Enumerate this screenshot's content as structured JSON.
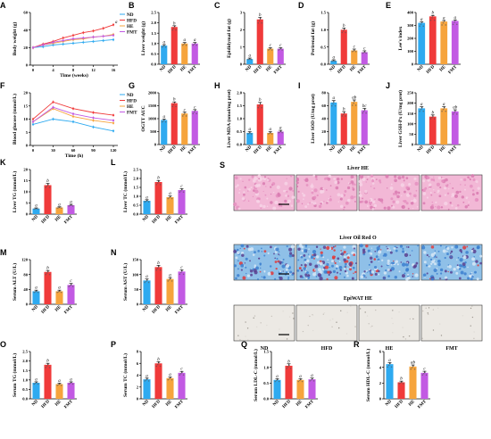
{
  "colors": {
    "ND": "#2eaaf0",
    "HFD": "#f03a3a",
    "HE": "#f6a43c",
    "FMT": "#c25ae3"
  },
  "groups": [
    "ND",
    "HFD",
    "HE",
    "FMT"
  ],
  "chart_data": [
    {
      "id": "A",
      "type": "line",
      "ylabel": "Body weight (g)",
      "xlabel": "Time (weeks)",
      "x": [
        0,
        2,
        4,
        6,
        8,
        10,
        12,
        14,
        16
      ],
      "xticks": [
        "0",
        "4",
        "8",
        "12",
        "16"
      ],
      "xtick_vals": [
        0,
        4,
        8,
        12,
        16
      ],
      "ylim": [
        0,
        60
      ],
      "yticks": [
        "0",
        "20",
        "40",
        "60"
      ],
      "series": [
        {
          "name": "ND",
          "values": [
            20,
            21,
            23,
            24,
            25,
            26,
            27,
            28,
            29
          ]
        },
        {
          "name": "HFD",
          "values": [
            20,
            24,
            27,
            31,
            34,
            37,
            39,
            42,
            46
          ]
        },
        {
          "name": "HE",
          "values": [
            20,
            23,
            25,
            27,
            29,
            30,
            32,
            33,
            35
          ]
        },
        {
          "name": "FMT",
          "values": [
            20,
            23,
            26,
            28,
            30,
            31,
            32,
            33,
            34
          ]
        }
      ],
      "annot": "a"
    },
    {
      "id": "B",
      "type": "bar",
      "ylabel": "Liver weight (g)",
      "ylim": [
        0,
        2.5
      ],
      "yticks": [
        "0.0",
        "0.5",
        "1.0",
        "1.5",
        "2.0",
        "2.5"
      ],
      "values": [
        0.9,
        1.8,
        1.0,
        1.0
      ],
      "errors": [
        0.05,
        0.06,
        0.05,
        0.05
      ],
      "letters": [
        "a",
        "b",
        "a",
        "a"
      ]
    },
    {
      "id": "C",
      "type": "bar",
      "ylabel": "Epididymal fat (g)",
      "ylim": [
        0,
        3
      ],
      "yticks": [
        "0",
        "1",
        "2",
        "3"
      ],
      "values": [
        0.3,
        2.6,
        0.9,
        0.9
      ],
      "errors": [
        0.06,
        0.12,
        0.06,
        0.06
      ],
      "letters": [
        "a",
        "b",
        "c",
        "c"
      ]
    },
    {
      "id": "D",
      "type": "bar",
      "ylabel": "Perirenal fat (g)",
      "ylim": [
        0,
        1.5
      ],
      "yticks": [
        "0.0",
        "0.5",
        "1.0",
        "1.5"
      ],
      "values": [
        0.1,
        1.0,
        0.4,
        0.35
      ],
      "errors": [
        0.03,
        0.05,
        0.04,
        0.04
      ],
      "letters": [
        "a",
        "b",
        "c",
        "c"
      ]
    },
    {
      "id": "E",
      "type": "bar",
      "ylabel": "Lee's index",
      "ylim": [
        0,
        400
      ],
      "yticks": [
        "0",
        "100",
        "200",
        "300",
        "400"
      ],
      "values": [
        320,
        370,
        330,
        335
      ],
      "errors": [
        8,
        8,
        8,
        8
      ],
      "letters": [
        "a",
        "b",
        "a",
        "a"
      ]
    },
    {
      "id": "F",
      "type": "line",
      "ylabel": "Blood glucose (mmol/L)",
      "xlabel": "Time (h)",
      "x": [
        0,
        30,
        60,
        90,
        120
      ],
      "xticks": [
        "0",
        "30",
        "60",
        "90",
        "120"
      ],
      "xtick_vals": [
        0,
        30,
        60,
        90,
        120
      ],
      "ylim": [
        0,
        20
      ],
      "yticks": [
        "0",
        "5",
        "10",
        "15",
        "20"
      ],
      "series": [
        {
          "name": "ND",
          "values": [
            8,
            10,
            9,
            7,
            5.5
          ]
        },
        {
          "name": "HFD",
          "values": [
            10,
            16.5,
            14,
            12.5,
            11.5
          ]
        },
        {
          "name": "HE",
          "values": [
            9,
            14,
            11,
            9.5,
            8.5
          ]
        },
        {
          "name": "FMT",
          "values": [
            9,
            14.5,
            12,
            10.5,
            9.5
          ]
        }
      ],
      "annot": ""
    },
    {
      "id": "G",
      "type": "bar",
      "ylabel": "OGTT AUC",
      "ylim": [
        0,
        2000
      ],
      "yticks": [
        "0",
        "500",
        "1000",
        "1500",
        "2000"
      ],
      "values": [
        950,
        1600,
        1200,
        1300
      ],
      "errors": [
        40,
        50,
        50,
        50
      ],
      "letters": [
        "a",
        "b",
        "c",
        "c"
      ]
    },
    {
      "id": "H",
      "type": "bar",
      "ylabel": "Liver MDA (nmol/mg prot)",
      "ylim": [
        0,
        2
      ],
      "yticks": [
        "0.0",
        "0.5",
        "1.0",
        "1.5",
        "2.0"
      ],
      "values": [
        0.45,
        1.55,
        0.45,
        0.5
      ],
      "errors": [
        0.05,
        0.08,
        0.05,
        0.05
      ],
      "letters": [
        "a",
        "b",
        "a",
        "a"
      ]
    },
    {
      "id": "I",
      "type": "bar",
      "ylabel": "Liver SOD (U/mg prot)",
      "ylim": [
        0,
        80
      ],
      "yticks": [
        "0",
        "20",
        "40",
        "60",
        "80"
      ],
      "values": [
        65,
        48,
        66,
        53
      ],
      "errors": [
        3,
        3,
        3,
        3
      ],
      "letters": [
        "a",
        "b",
        "ab",
        "bc"
      ]
    },
    {
      "id": "J",
      "type": "bar",
      "ylabel": "Liver GSH-Px (U/mg prot)",
      "ylim": [
        0,
        250
      ],
      "yticks": [
        "0",
        "50",
        "100",
        "150",
        "200",
        "250"
      ],
      "values": [
        175,
        135,
        175,
        160
      ],
      "errors": [
        8,
        8,
        8,
        8
      ],
      "letters": [
        "a",
        "b",
        "a",
        "ab"
      ]
    },
    {
      "id": "K",
      "type": "bar",
      "ylabel": "Liver TG (mmol/L)",
      "ylim": [
        0,
        20
      ],
      "yticks": [
        "0",
        "5",
        "10",
        "15",
        "20"
      ],
      "values": [
        2.5,
        13,
        3,
        4
      ],
      "errors": [
        0.3,
        0.8,
        0.3,
        0.4
      ],
      "letters": [
        "a",
        "b",
        "a",
        "a"
      ]
    },
    {
      "id": "L",
      "type": "bar",
      "ylabel": "Liver TC (mmol/L)",
      "ylim": [
        0,
        2.5
      ],
      "yticks": [
        "0.0",
        "0.5",
        "1.0",
        "1.5",
        "2.0",
        "2.5"
      ],
      "values": [
        0.75,
        1.8,
        0.95,
        1.35
      ],
      "errors": [
        0.06,
        0.09,
        0.07,
        0.08
      ],
      "letters": [
        "a",
        "b",
        "a",
        "c"
      ]
    },
    {
      "id": "M",
      "type": "bar",
      "ylabel": "Serum ALT (U/L)",
      "ylim": [
        0,
        120
      ],
      "yticks": [
        "0",
        "40",
        "80",
        "120"
      ],
      "values": [
        35,
        87,
        35,
        52
      ],
      "errors": [
        3,
        4,
        3,
        4
      ],
      "letters": [
        "a",
        "b",
        "a",
        "c"
      ]
    },
    {
      "id": "N",
      "type": "bar",
      "ylabel": "Serum AST (U/L)",
      "ylim": [
        0,
        150
      ],
      "yticks": [
        "0",
        "50",
        "100",
        "150"
      ],
      "values": [
        80,
        125,
        85,
        110
      ],
      "errors": [
        5,
        6,
        5,
        6
      ],
      "letters": [
        "a",
        "b",
        "a",
        "c"
      ]
    },
    {
      "id": "O",
      "type": "bar",
      "ylabel": "Serum TG (mmol/L)",
      "ylim": [
        0,
        2.5
      ],
      "yticks": [
        "0.0",
        "0.5",
        "1.0",
        "1.5",
        "2.0",
        "2.5"
      ],
      "values": [
        0.85,
        1.8,
        0.78,
        0.85
      ],
      "errors": [
        0.05,
        0.08,
        0.05,
        0.05
      ],
      "letters": [
        "a",
        "b",
        "a",
        "a"
      ]
    },
    {
      "id": "P",
      "type": "bar",
      "ylabel": "Serum TC (mmol/L)",
      "ylim": [
        0,
        8
      ],
      "yticks": [
        "0",
        "2",
        "4",
        "6",
        "8"
      ],
      "values": [
        3.3,
        6.0,
        3.5,
        4.4
      ],
      "errors": [
        0.2,
        0.3,
        0.2,
        0.25
      ],
      "letters": [
        "a",
        "b",
        "a",
        "c"
      ]
    },
    {
      "id": "Q",
      "type": "bar",
      "ylabel": "Serum LDL-C (mmol/L)",
      "ylim": [
        0,
        1.5
      ],
      "yticks": [
        "0.0",
        "0.5",
        "1.0",
        "1.5"
      ],
      "values": [
        0.6,
        1.05,
        0.6,
        0.62
      ],
      "errors": [
        0.04,
        0.06,
        0.04,
        0.04
      ],
      "letters": [
        "a",
        "b",
        "a",
        "a"
      ]
    },
    {
      "id": "R",
      "type": "bar",
      "ylabel": "Serum HDL-C (mmol/L)",
      "ylim": [
        0,
        6
      ],
      "yticks": [
        "0",
        "2",
        "4",
        "6"
      ],
      "values": [
        4.4,
        2.1,
        4.1,
        3.3
      ],
      "errors": [
        0.2,
        0.15,
        0.2,
        0.2
      ],
      "letters": [
        "a",
        "b",
        "ab",
        "c"
      ]
    }
  ],
  "histology": {
    "id": "S",
    "rows": [
      {
        "title": "Liver HE",
        "tone": "he"
      },
      {
        "title": "Liver Oil Red O",
        "tone": "oro"
      },
      {
        "title": "EpiWAT HE",
        "tone": "wat"
      }
    ],
    "columns": [
      "ND",
      "HFD",
      "HE",
      "FMT"
    ]
  }
}
